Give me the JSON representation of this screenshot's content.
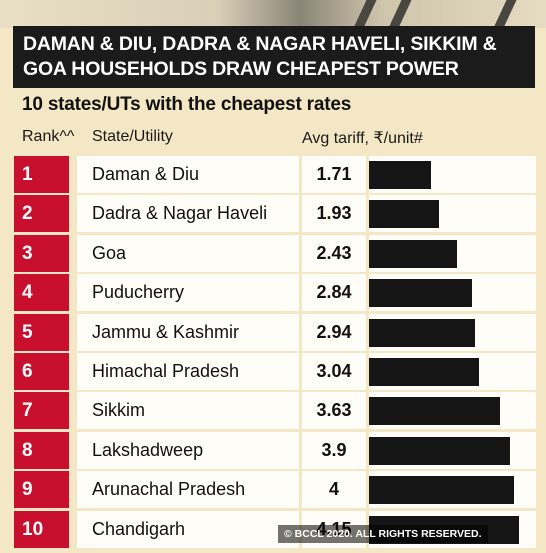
{
  "headline": {
    "line1": "DAMAN & DIU, DADRA & NAGAR HAVELI, SIKKIM &",
    "line2": "GOA HOUSEHOLDS DRAW CHEAPEST POWER"
  },
  "subtitle": "10 states/UTs with the cheapest rates",
  "columns": {
    "rank": "Rank^^",
    "state": "State/Utility",
    "tariff": "Avg tariff, ₹/unit#"
  },
  "copyright": "© BCCL 2020. ALL RIGHTS RESERVED.",
  "colors": {
    "rank_box": "#c8102e",
    "bar": "#151515",
    "headline_bg": "#1b1b1b",
    "background": "#f3e7c5"
  },
  "chart_data": {
    "type": "bar",
    "orientation": "horizontal",
    "title": "10 states/UTs with the cheapest rates",
    "categories": [
      "Daman & Diu",
      "Dadra & Nagar Haveli",
      "Goa",
      "Puducherry",
      "Jammu & Kashmir",
      "Himachal Pradesh",
      "Sikkim",
      "Lakshadweep",
      "Arunachal Pradesh",
      "Chandigarh"
    ],
    "ranks": [
      "1",
      "2",
      "3",
      "4",
      "5",
      "6",
      "7",
      "8",
      "9",
      "10"
    ],
    "values": [
      1.71,
      1.93,
      2.43,
      2.84,
      2.94,
      3.04,
      3.63,
      3.9,
      4,
      4.15
    ],
    "labels": [
      "1.71",
      "1.93",
      "2.43",
      "2.84",
      "2.94",
      "3.04",
      "3.63",
      "3.9",
      "4",
      "4.15"
    ],
    "xlim": [
      0,
      4.15
    ]
  }
}
